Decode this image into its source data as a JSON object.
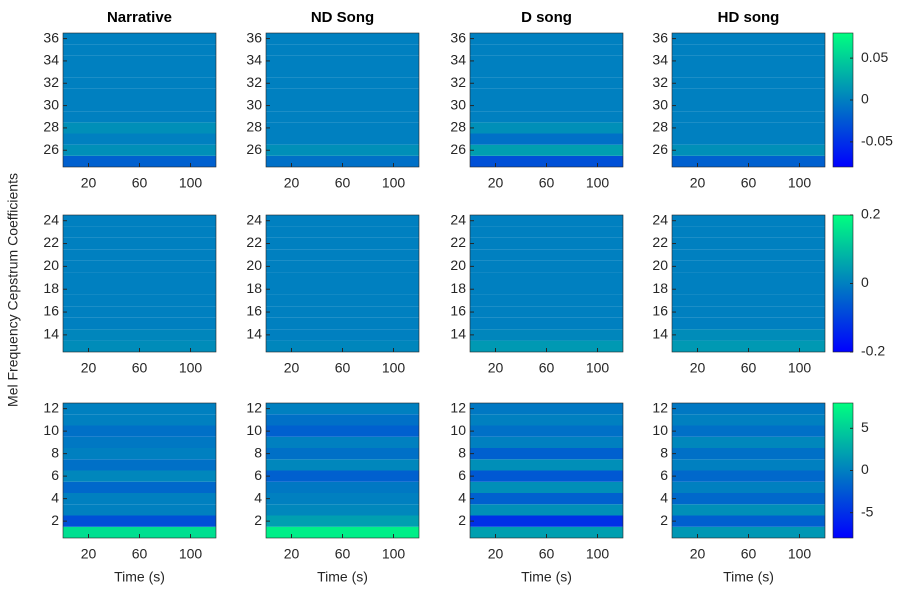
{
  "colormap": [
    "#0000ff",
    "#00ff80"
  ],
  "ylabel": "Mel Frequency Cepstrum Coefficients",
  "colorbars": [
    {
      "lim": [
        -0.08,
        0.08
      ],
      "ticks": [
        -0.05,
        0,
        0.05
      ]
    },
    {
      "lim": [
        -0.2,
        0.2
      ],
      "ticks": [
        -0.2,
        0,
        0.2
      ]
    },
    {
      "lim": [
        -8,
        8
      ],
      "ticks": [
        -5,
        0,
        5
      ]
    }
  ],
  "chart_data": [
    {
      "type": "heatmap",
      "title": "Narrative",
      "xlim": [
        0,
        120
      ],
      "xticks": [
        20,
        60,
        100
      ],
      "ylim": [
        24.5,
        36.5
      ],
      "yticks": [
        26,
        28,
        30,
        32,
        34,
        36
      ],
      "y": [
        25,
        26,
        27,
        28,
        29,
        30,
        31,
        32,
        33,
        34,
        35,
        36
      ],
      "values": [
        -0.02,
        0.01,
        0,
        0.01,
        0,
        0,
        0,
        0,
        0,
        0,
        0,
        0
      ]
    },
    {
      "type": "heatmap",
      "title": "ND Song",
      "xlim": [
        0,
        120
      ],
      "xticks": [
        20,
        60,
        100
      ],
      "ylim": [
        24.5,
        36.5
      ],
      "yticks": [
        26,
        28,
        30,
        32,
        34,
        36
      ],
      "y": [
        25,
        26,
        27,
        28,
        29,
        30,
        31,
        32,
        33,
        34,
        35,
        36
      ],
      "values": [
        -0.01,
        0.01,
        0,
        0,
        0,
        0,
        0,
        0,
        0,
        0,
        0,
        0
      ]
    },
    {
      "type": "heatmap",
      "title": "D song",
      "xlim": [
        0,
        120
      ],
      "xticks": [
        20,
        60,
        100
      ],
      "ylim": [
        24.5,
        36.5
      ],
      "yticks": [
        26,
        28,
        30,
        32,
        34,
        36
      ],
      "y": [
        25,
        26,
        27,
        28,
        29,
        30,
        31,
        32,
        33,
        34,
        35,
        36
      ],
      "values": [
        -0.03,
        0.02,
        -0.01,
        0.01,
        0,
        0,
        0,
        0,
        0,
        0,
        0,
        0
      ]
    },
    {
      "type": "heatmap",
      "title": "HD song",
      "xlim": [
        0,
        120
      ],
      "xticks": [
        20,
        60,
        100
      ],
      "ylim": [
        24.5,
        36.5
      ],
      "yticks": [
        26,
        28,
        30,
        32,
        34,
        36
      ],
      "y": [
        25,
        26,
        27,
        28,
        29,
        30,
        31,
        32,
        33,
        34,
        35,
        36
      ],
      "values": [
        -0.02,
        0.01,
        0,
        0,
        0,
        0,
        0,
        0,
        0,
        0,
        0,
        0
      ]
    },
    {
      "type": "heatmap",
      "xlim": [
        0,
        120
      ],
      "xticks": [
        20,
        60,
        100
      ],
      "ylim": [
        12.5,
        24.5
      ],
      "yticks": [
        14,
        16,
        18,
        20,
        22,
        24
      ],
      "y": [
        13,
        14,
        15,
        16,
        17,
        18,
        19,
        20,
        21,
        22,
        23,
        24
      ],
      "values": [
        0.02,
        0.01,
        0,
        0,
        0,
        0,
        0,
        0,
        0,
        0,
        0,
        0
      ]
    },
    {
      "type": "heatmap",
      "xlim": [
        0,
        120
      ],
      "xticks": [
        20,
        60,
        100
      ],
      "ylim": [
        12.5,
        24.5
      ],
      "yticks": [
        14,
        16,
        18,
        20,
        22,
        24
      ],
      "y": [
        13,
        14,
        15,
        16,
        17,
        18,
        19,
        20,
        21,
        22,
        23,
        24
      ],
      "values": [
        0.01,
        0,
        0,
        0,
        0,
        0,
        0,
        0,
        0,
        0,
        0,
        0
      ]
    },
    {
      "type": "heatmap",
      "xlim": [
        0,
        120
      ],
      "xticks": [
        20,
        60,
        100
      ],
      "ylim": [
        12.5,
        24.5
      ],
      "yticks": [
        14,
        16,
        18,
        20,
        22,
        24
      ],
      "y": [
        13,
        14,
        15,
        16,
        17,
        18,
        19,
        20,
        21,
        22,
        23,
        24
      ],
      "values": [
        0.04,
        0.01,
        0,
        0,
        0,
        0,
        0,
        0,
        0,
        0,
        0,
        0
      ]
    },
    {
      "type": "heatmap",
      "xlim": [
        0,
        120
      ],
      "xticks": [
        20,
        60,
        100
      ],
      "ylim": [
        12.5,
        24.5
      ],
      "yticks": [
        14,
        16,
        18,
        20,
        22,
        24
      ],
      "y": [
        13,
        14,
        15,
        16,
        17,
        18,
        19,
        20,
        21,
        22,
        23,
        24
      ],
      "values": [
        0.04,
        0.02,
        0,
        0,
        0,
        0,
        0,
        0,
        0,
        0,
        0,
        0
      ]
    },
    {
      "type": "heatmap",
      "xlabel": "Time (s)",
      "xlim": [
        0,
        120
      ],
      "xticks": [
        20,
        60,
        100
      ],
      "ylim": [
        0.5,
        12.5
      ],
      "yticks": [
        2,
        4,
        6,
        8,
        10,
        12
      ],
      "y": [
        1,
        2,
        3,
        4,
        5,
        6,
        7,
        8,
        9,
        10,
        11,
        12
      ],
      "values": [
        6,
        -3,
        0,
        0,
        -1.5,
        0.5,
        -1,
        0,
        -0.5,
        -1,
        0,
        0
      ]
    },
    {
      "type": "heatmap",
      "xlabel": "Time (s)",
      "xlim": [
        0,
        120
      ],
      "xticks": [
        20,
        60,
        100
      ],
      "ylim": [
        0.5,
        12.5
      ],
      "yticks": [
        2,
        4,
        6,
        8,
        10,
        12
      ],
      "y": [
        1,
        2,
        3,
        4,
        5,
        6,
        7,
        8,
        9,
        10,
        11,
        12
      ],
      "values": [
        7,
        2,
        0.5,
        0,
        -0.5,
        -2,
        0.5,
        -1,
        0,
        -2,
        -1,
        0
      ]
    },
    {
      "type": "heatmap",
      "xlabel": "Time (s)",
      "xlim": [
        0,
        120
      ],
      "xticks": [
        20,
        60,
        100
      ],
      "ylim": [
        0.5,
        12.5
      ],
      "yticks": [
        2,
        4,
        6,
        8,
        10,
        12
      ],
      "y": [
        1,
        2,
        3,
        4,
        5,
        6,
        7,
        8,
        9,
        10,
        11,
        12
      ],
      "values": [
        2,
        -5,
        1,
        -2,
        1,
        -2.5,
        1,
        -2,
        0,
        -1,
        0,
        -0.5
      ]
    },
    {
      "type": "heatmap",
      "xlabel": "Time (s)",
      "xlim": [
        0,
        120
      ],
      "xticks": [
        20,
        60,
        100
      ],
      "ylim": [
        0.5,
        12.5
      ],
      "yticks": [
        2,
        4,
        6,
        8,
        10,
        12
      ],
      "y": [
        1,
        2,
        3,
        4,
        5,
        6,
        7,
        8,
        9,
        10,
        11,
        12
      ],
      "values": [
        1.5,
        -2,
        1,
        -1.5,
        0,
        -1.5,
        0,
        -1,
        0.5,
        -1,
        0,
        -0.5
      ]
    }
  ]
}
